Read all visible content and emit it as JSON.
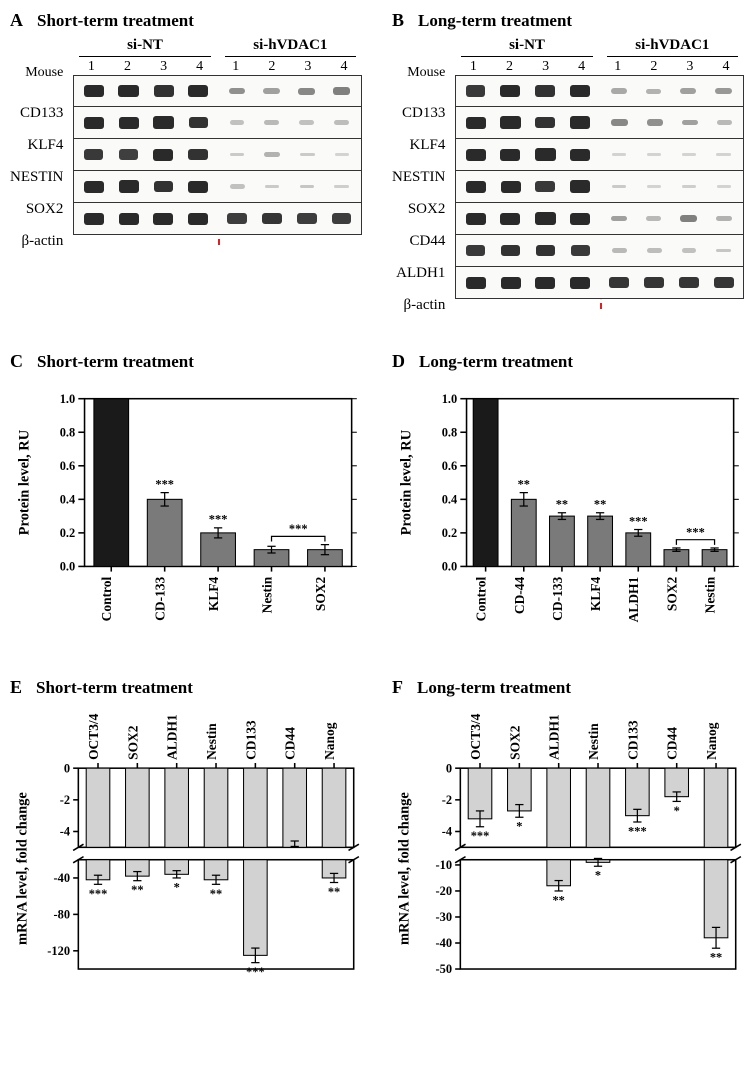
{
  "panelA": {
    "letter": "A",
    "title": "Short-term treatment",
    "group_labels": [
      "si-NT",
      "si-hVDAC1"
    ],
    "mouse_label": "Mouse",
    "lane_numbers": [
      "1",
      "2",
      "3",
      "4",
      "1",
      "2",
      "3",
      "4"
    ],
    "proteins": [
      {
        "name": "CD133",
        "nt": [
          1.0,
          1.1,
          0.95,
          1.0
        ],
        "kd": [
          0.45,
          0.35,
          0.5,
          0.55
        ]
      },
      {
        "name": "KLF4",
        "nt": [
          1.0,
          1.0,
          1.05,
          0.95
        ],
        "kd": [
          0.15,
          0.2,
          0.15,
          0.18
        ]
      },
      {
        "name": "NESTIN",
        "nt": [
          0.9,
          0.85,
          1.0,
          0.95
        ],
        "kd": [
          0.1,
          0.25,
          0.1,
          0.05
        ]
      },
      {
        "name": "SOX2",
        "nt": [
          1.0,
          1.05,
          0.95,
          1.0
        ],
        "kd": [
          0.15,
          0.1,
          0.12,
          0.08
        ]
      },
      {
        "name": "β-actin",
        "nt": [
          1.0,
          1.0,
          1.0,
          1.0
        ],
        "kd": [
          0.95,
          1.0,
          0.95,
          0.95
        ]
      }
    ]
  },
  "panelB": {
    "letter": "B",
    "title": "Long-term treatment",
    "group_labels": [
      "si-NT",
      "si-hVDAC1"
    ],
    "mouse_label": "Mouse",
    "lane_numbers": [
      "1",
      "2",
      "3",
      "4",
      "1",
      "2",
      "3",
      "4"
    ],
    "proteins": [
      {
        "name": "CD133",
        "nt": [
          0.9,
          1.0,
          0.95,
          1.0
        ],
        "kd": [
          0.3,
          0.25,
          0.35,
          0.4
        ]
      },
      {
        "name": "KLF4",
        "nt": [
          1.0,
          1.05,
          0.95,
          1.1
        ],
        "kd": [
          0.5,
          0.45,
          0.35,
          0.2
        ]
      },
      {
        "name": "NESTIN",
        "nt": [
          1.0,
          1.0,
          1.05,
          1.0
        ],
        "kd": [
          0.05,
          0.05,
          0.05,
          0.05
        ]
      },
      {
        "name": "SOX2",
        "nt": [
          1.0,
          1.0,
          0.9,
          1.1
        ],
        "kd": [
          0.1,
          0.05,
          0.08,
          0.05
        ]
      },
      {
        "name": "CD44",
        "nt": [
          1.0,
          1.0,
          1.05,
          1.0
        ],
        "kd": [
          0.35,
          0.2,
          0.55,
          0.25
        ]
      },
      {
        "name": "ALDH1",
        "nt": [
          0.9,
          0.95,
          0.95,
          0.9
        ],
        "kd": [
          0.2,
          0.18,
          0.15,
          0.12
        ]
      },
      {
        "name": "β-actin",
        "nt": [
          1.0,
          1.0,
          1.0,
          1.0
        ],
        "kd": [
          1.0,
          1.0,
          1.0,
          1.0
        ]
      }
    ]
  },
  "panelC": {
    "letter": "C",
    "title": "Short-term treatment",
    "type": "bar",
    "ylabel": "Protein level, RU",
    "ylim": [
      0,
      1.0
    ],
    "yticks": [
      0.0,
      0.2,
      0.4,
      0.6,
      0.8,
      1.0
    ],
    "categories": [
      "Control",
      "CD-133",
      "KLF4",
      "Nestin",
      "SOX2"
    ],
    "values": [
      1.0,
      0.4,
      0.2,
      0.1,
      0.1
    ],
    "errors": [
      0,
      0.04,
      0.03,
      0.02,
      0.03
    ],
    "bar_colors": [
      "#1a1a1a",
      "#7a7a7a",
      "#7a7a7a",
      "#7a7a7a",
      "#7a7a7a"
    ],
    "significance": [
      "",
      "***",
      "***",
      "***",
      "***"
    ],
    "sig_bracket": {
      "from": 3,
      "to": 4,
      "label": "***"
    },
    "label_fontsize": 13,
    "bar_width": 0.65,
    "background": "#ffffff"
  },
  "panelD": {
    "letter": "D",
    "title": "Long-term treatment",
    "type": "bar",
    "ylabel": "Protein level, RU",
    "ylim": [
      0,
      1.0
    ],
    "yticks": [
      0.0,
      0.2,
      0.4,
      0.6,
      0.8,
      1.0
    ],
    "categories": [
      "Control",
      "CD-44",
      "CD-133",
      "KLF4",
      "ALDH1",
      "SOX2",
      "Nestin"
    ],
    "values": [
      1.0,
      0.4,
      0.3,
      0.3,
      0.2,
      0.1,
      0.1
    ],
    "errors": [
      0,
      0.04,
      0.02,
      0.02,
      0.02,
      0.01,
      0.01
    ],
    "bar_colors": [
      "#1a1a1a",
      "#7a7a7a",
      "#7a7a7a",
      "#7a7a7a",
      "#7a7a7a",
      "#7a7a7a",
      "#7a7a7a"
    ],
    "significance": [
      "",
      "**",
      "**",
      "**",
      "***",
      "***",
      "***"
    ],
    "sig_bracket": {
      "from": 5,
      "to": 6,
      "label": "***"
    },
    "label_fontsize": 13,
    "bar_width": 0.65,
    "background": "#ffffff"
  },
  "panelE": {
    "letter": "E",
    "title": "Short-term treatment",
    "type": "broken_bar_down",
    "ylabel": "mRNA level, fold change",
    "upper": {
      "lim": [
        -5,
        0
      ],
      "ticks": [
        0,
        -2,
        -4
      ]
    },
    "lower": {
      "lim": [
        -140,
        -20
      ],
      "ticks": [
        -40,
        -80,
        -120
      ]
    },
    "categories": [
      "OCT3/4",
      "SOX2",
      "ALDH1",
      "Nestin",
      "CD133",
      "CD44",
      "Nanog"
    ],
    "values": [
      -42,
      -38,
      -36,
      -42,
      -125,
      -5,
      -40
    ],
    "errors": [
      5,
      5,
      4,
      5,
      8,
      0.4,
      5
    ],
    "significance": [
      "***",
      "**",
      "*",
      "**",
      "***",
      "",
      "**"
    ],
    "bar_color": "#d2d2d2",
    "bar_width": 0.6,
    "background": "#ffffff"
  },
  "panelF": {
    "letter": "F",
    "title": "Long-term treatment",
    "type": "broken_bar_down",
    "ylabel": "mRNA level, fold change",
    "upper": {
      "lim": [
        -5,
        0
      ],
      "ticks": [
        0,
        -2,
        -4
      ]
    },
    "lower": {
      "lim": [
        -50,
        -8
      ],
      "ticks": [
        -10,
        -20,
        -30,
        -40,
        -50
      ]
    },
    "categories": [
      "OCT3/4",
      "SOX2",
      "ALDH1",
      "Nestin",
      "CD133",
      "CD44",
      "Nanog"
    ],
    "values": [
      -3.2,
      -2.7,
      -18,
      -9,
      -3.0,
      -1.8,
      -38
    ],
    "errors": [
      0.5,
      0.4,
      2.0,
      1.5,
      0.4,
      0.3,
      4.0
    ],
    "significance": [
      "***",
      "*",
      "**",
      "*",
      "***",
      "*",
      "**"
    ],
    "bar_color": "#d2d2d2",
    "bar_width": 0.6,
    "background": "#ffffff"
  },
  "colors": {
    "redline": "#e02020",
    "blot_border": "#333",
    "blot_bg": "#fafaf8",
    "band": "#2a2a2a"
  }
}
